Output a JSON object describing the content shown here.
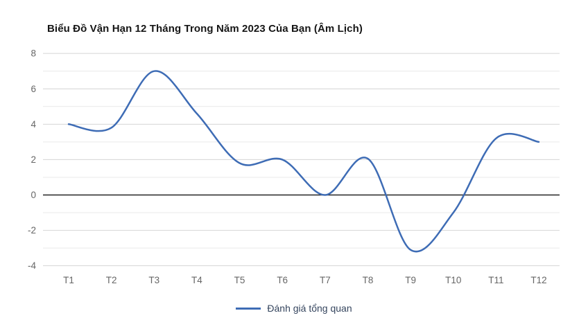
{
  "chart_data": {
    "type": "line",
    "title": "Biểu Đồ Vận Hạn 12 Tháng Trong Năm 2023 Của Bạn (Âm Lịch)",
    "categories": [
      "T1",
      "T2",
      "T3",
      "T4",
      "T5",
      "T6",
      "T7",
      "T8",
      "T9",
      "T10",
      "T11",
      "T12"
    ],
    "series": [
      {
        "name": "Đánh giá tổng quan",
        "values": [
          4,
          3.8,
          7,
          4.6,
          1.8,
          2,
          0,
          2.05,
          -3.1,
          -1,
          3.2,
          3
        ]
      }
    ],
    "xlabel": "",
    "ylabel": "",
    "ylim": [
      -4,
      8
    ],
    "y_tick_labels": [
      8,
      6,
      4,
      2,
      0,
      -2,
      -4
    ],
    "grid": "horizontal lines every 1 unit, zero line emphasized black, no vertical gridlines",
    "legend_position": "bottom-center",
    "line_style": "smooth spline, no point markers",
    "colors": {
      "line": "#3e6cb5",
      "grid_major": "#d4d4d4",
      "grid_minor": "#e9e9e9",
      "zero_line": "#222222",
      "tick_label": "#666666",
      "legend_text": "#35455e",
      "title_text": "#161616",
      "background": "#ffffff"
    }
  }
}
